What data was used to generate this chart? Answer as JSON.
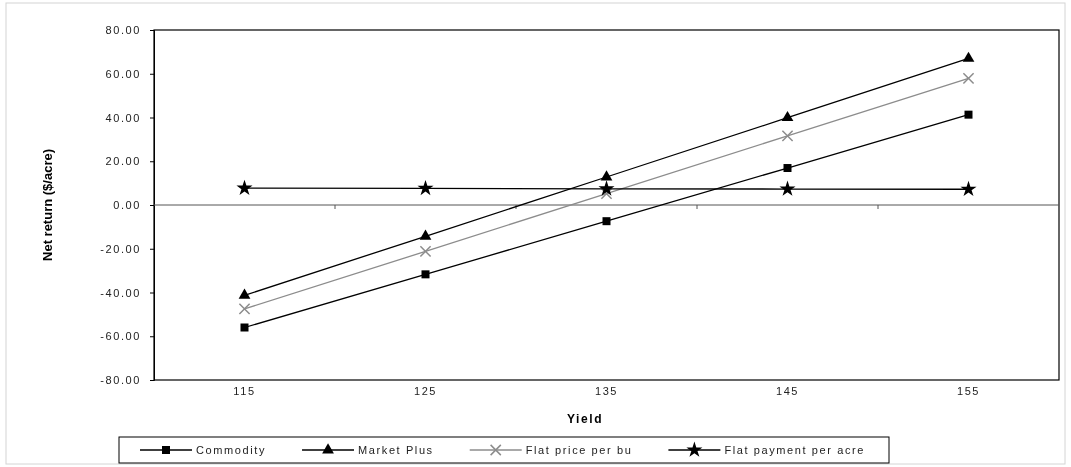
{
  "chart_data": {
    "type": "line",
    "xlabel": "Yield",
    "ylabel": "Net return ($/acre)",
    "categories": [
      "115",
      "125",
      "135",
      "145",
      "155"
    ],
    "series": [
      {
        "name": "Commodity",
        "color": "#000000",
        "marker": "square",
        "values": [
          -56,
          -31.7,
          -7.4,
          16.9,
          41.3
        ]
      },
      {
        "name": "Market Plus",
        "color": "#000000",
        "marker": "triangle",
        "values": [
          -41.3,
          -14.3,
          12.8,
          39.9,
          67.0
        ]
      },
      {
        "name": "Flat price per bu",
        "color": "#8c8c8c",
        "marker": "cross",
        "values": [
          -47.5,
          -21.2,
          5.2,
          31.6,
          57.9
        ]
      },
      {
        "name": "Flat payment per acre",
        "color": "#000000",
        "marker": "star",
        "values": [
          7.7,
          7.6,
          7.4,
          7.3,
          7.2
        ]
      }
    ],
    "ylim": [
      -80,
      80
    ],
    "yticks": [
      {
        "value": -80,
        "label": "-80.00"
      },
      {
        "value": -60,
        "label": "-60.00"
      },
      {
        "value": -40,
        "label": "-40.00"
      },
      {
        "value": -20,
        "label": "-20.00"
      },
      {
        "value": 0,
        "label": "0.00"
      },
      {
        "value": 20,
        "label": "20.00"
      },
      {
        "value": 40,
        "label": "40.00"
      },
      {
        "value": 60,
        "label": "60.00"
      },
      {
        "value": 80,
        "label": "80.00"
      }
    ],
    "legend": "bottom"
  }
}
